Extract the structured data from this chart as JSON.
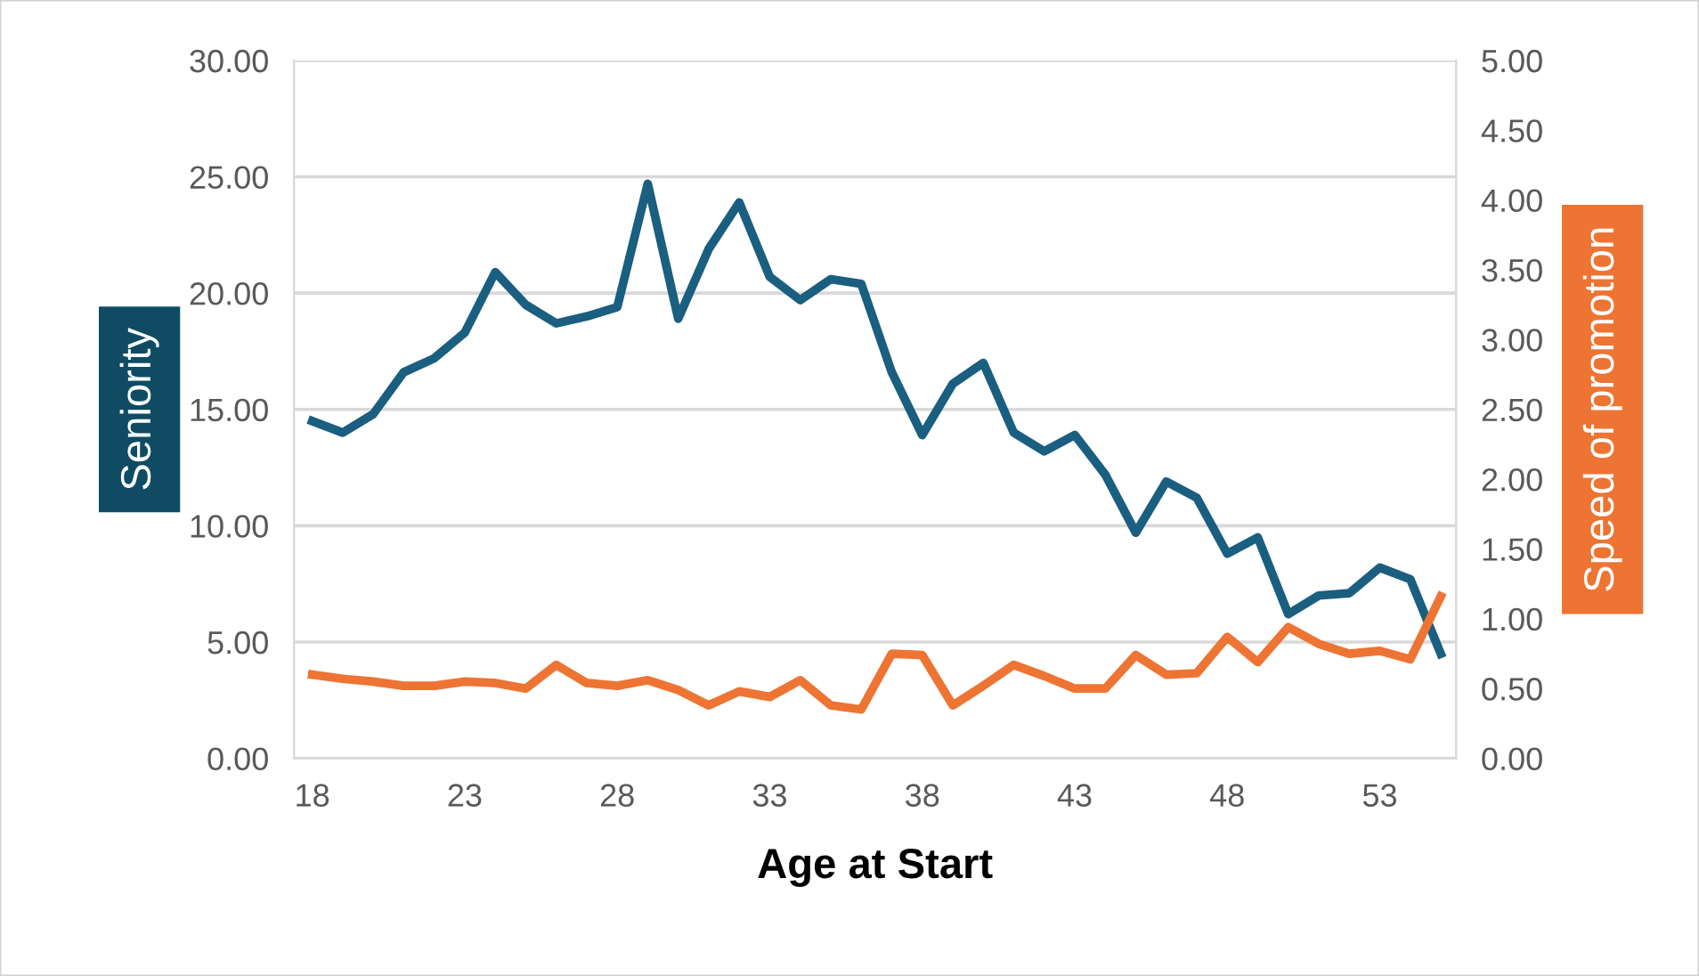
{
  "chart_data": {
    "type": "line",
    "xlabel": "Age at Start",
    "ylabel": "Seniority",
    "y2label": "Speed of promotion",
    "x": [
      18,
      19,
      20,
      21,
      22,
      23,
      24,
      25,
      26,
      27,
      28,
      29,
      30,
      31,
      32,
      33,
      34,
      35,
      36,
      37,
      38,
      39,
      40,
      41,
      42,
      43,
      44,
      45,
      46,
      47,
      48,
      49,
      50,
      51,
      52,
      53,
      54,
      55
    ],
    "series": [
      {
        "color": "#1a5e80",
        "values": [
          14.5,
          14.0,
          14.8,
          16.6,
          17.2,
          18.3,
          20.9,
          19.5,
          18.7,
          19.0,
          19.4,
          24.7,
          18.9,
          21.9,
          23.9,
          20.7,
          19.7,
          20.6,
          20.4,
          16.6,
          13.9,
          16.1,
          17.0,
          14.0,
          13.2,
          13.9,
          12.2,
          9.7,
          11.9,
          11.2,
          8.8,
          9.5,
          6.2,
          7.0,
          7.1,
          8.2,
          7.7,
          4.5
        ]
      },
      {
        "color": "#ed7433",
        "axis": "y2",
        "values": [
          0.6,
          0.57,
          0.55,
          0.52,
          0.52,
          0.55,
          0.54,
          0.5,
          0.67,
          0.54,
          0.52,
          0.56,
          0.49,
          0.38,
          0.48,
          0.44,
          0.56,
          0.38,
          0.35,
          0.75,
          0.74,
          0.38,
          0.52,
          0.67,
          0.59,
          0.5,
          0.5,
          0.74,
          0.6,
          0.61,
          0.87,
          0.69,
          0.94,
          0.82,
          0.75,
          0.77,
          0.71,
          1.16
        ]
      }
    ],
    "xlim": [
      17.4,
      55.5
    ],
    "xticks": [
      18,
      23,
      28,
      33,
      38,
      43,
      48,
      53
    ],
    "ylim": [
      0,
      30
    ],
    "yticks": [
      {
        "value": 0,
        "label": "0.00"
      },
      {
        "value": 5,
        "label": "5.00"
      },
      {
        "value": 10,
        "label": "10.00"
      },
      {
        "value": 15,
        "label": "15.00"
      },
      {
        "value": 20,
        "label": "20.00"
      },
      {
        "value": 25,
        "label": "25.00"
      },
      {
        "value": 30,
        "label": "30.00"
      }
    ],
    "y2lim": [
      0,
      5
    ],
    "y2ticks": [
      {
        "value": 0,
        "label": "0.00"
      },
      {
        "value": 0.5,
        "label": "0.50"
      },
      {
        "value": 1,
        "label": "1.00"
      },
      {
        "value": 1.5,
        "label": "1.50"
      },
      {
        "value": 2,
        "label": "2.00"
      },
      {
        "value": 2.5,
        "label": "2.50"
      },
      {
        "value": 3,
        "label": "3.00"
      },
      {
        "value": 3.5,
        "label": "3.50"
      },
      {
        "value": 4,
        "label": "4.00"
      },
      {
        "value": 4.5,
        "label": "4.50"
      },
      {
        "value": 5,
        "label": "5.00"
      }
    ],
    "grid": "y",
    "legend": false,
    "marker": "none",
    "line_style": "solid"
  }
}
